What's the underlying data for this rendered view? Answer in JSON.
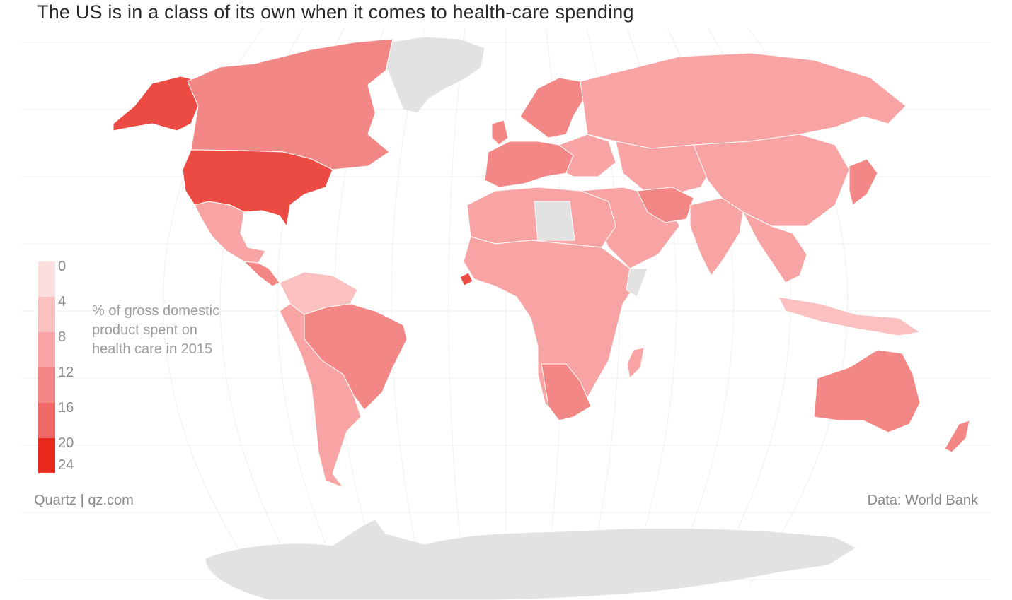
{
  "title": "The US is in a class of its own when it comes to health-care spending",
  "legend": {
    "title_lines": [
      "% of gross domestic",
      "product spent on",
      "health care in 2015"
    ],
    "ticks": [
      "0",
      "4",
      "8",
      "12",
      "16",
      "20",
      "24"
    ],
    "colors": [
      "#fddede",
      "#fbc0c0",
      "#f8a4a4",
      "#f38785",
      "#ef6a66",
      "#ec4b44",
      "#e92a1e"
    ]
  },
  "credit": "Quartz | qz.com",
  "source": "Data: World Bank",
  "palette": {
    "no_data": "#e2e2e2",
    "water": "#cde6ee",
    "graticule": "#efefef"
  },
  "regions": [
    {
      "name": "United States",
      "bin": 5
    },
    {
      "name": "Alaska",
      "bin": 5
    },
    {
      "name": "Canada",
      "bin": 3
    },
    {
      "name": "Mexico",
      "bin": 2
    },
    {
      "name": "Brazil",
      "bin": 3
    },
    {
      "name": "South America (other)",
      "bin": 2
    },
    {
      "name": "Western Europe",
      "bin": 3
    },
    {
      "name": "Russia",
      "bin": 2
    },
    {
      "name": "China",
      "bin": 2
    },
    {
      "name": "Africa",
      "bin": 2
    },
    {
      "name": "Sierra Leone",
      "bin": 5
    },
    {
      "name": "Australia",
      "bin": 3
    },
    {
      "name": "Greenland",
      "bin": -1
    },
    {
      "name": "Antarctica",
      "bin": -1
    }
  ]
}
